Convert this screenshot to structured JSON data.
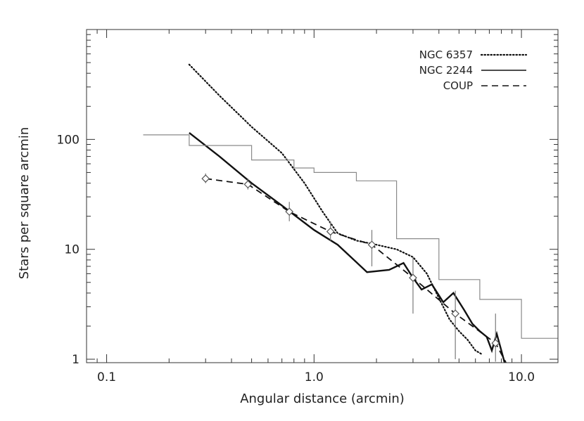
{
  "chart_data": {
    "type": "line",
    "title": "",
    "xlabel": "Angular distance (arcmin)",
    "ylabel": "Stars per square arcmin",
    "xscale": "log",
    "yscale": "log",
    "xlim": [
      0.08,
      15
    ],
    "ylim": [
      0.93,
      1000
    ],
    "xtick_labels": [
      {
        "value": 0.1,
        "label": "0.1"
      },
      {
        "value": 1,
        "label": "1.0"
      },
      {
        "value": 10,
        "label": "10.0"
      }
    ],
    "ytick_labels": [
      {
        "value": 1,
        "label": "1"
      },
      {
        "value": 10,
        "label": "10"
      },
      {
        "value": 100,
        "label": "100"
      }
    ],
    "grid": false,
    "legend_position": "top-right",
    "legend": [
      {
        "label": "NGC 6357",
        "style": "dotted"
      },
      {
        "label": "NGC 2244",
        "style": "solid"
      },
      {
        "label": "COUP",
        "style": "dashed"
      }
    ],
    "series": [
      {
        "name": "NGC 6357",
        "style": "dotted",
        "x": [
          0.25,
          0.35,
          0.5,
          0.7,
          0.9,
          1.1,
          1.3,
          1.6,
          2.0,
          2.5,
          3.0,
          3.5,
          4.0,
          4.5,
          5.0,
          5.5,
          6.0,
          6.5
        ],
        "y": [
          480,
          250,
          130,
          75,
          40,
          22,
          14,
          12,
          11,
          10,
          8.5,
          6,
          3.6,
          2.3,
          1.8,
          1.5,
          1.2,
          1.1
        ]
      },
      {
        "name": "NGC 2244",
        "style": "solid",
        "x": [
          0.25,
          0.35,
          0.5,
          0.7,
          1.0,
          1.3,
          1.8,
          2.3,
          2.7,
          3.0,
          3.3,
          3.7,
          4.2,
          4.7,
          5.3,
          5.8,
          6.3,
          6.8,
          7.2,
          7.6,
          8.0,
          8.4
        ],
        "y": [
          115,
          70,
          40,
          25,
          15,
          11,
          6.2,
          6.5,
          7.5,
          5.5,
          4.3,
          4.8,
          3.3,
          4.0,
          2.8,
          2.1,
          1.8,
          1.6,
          1.2,
          1.7,
          1.2,
          0.85
        ]
      },
      {
        "name": "COUP",
        "style": "dashed",
        "x": [
          0.3,
          0.48,
          0.76,
          1.2,
          1.9,
          3.0,
          4.8,
          7.5,
          8.5
        ],
        "y": [
          44,
          39,
          22,
          14.5,
          11,
          5.5,
          2.6,
          1.4,
          0.9
        ],
        "markers": {
          "shape": "diamond"
        },
        "error_bars": [
          {
            "x": 0.3,
            "low": 40,
            "high": 49
          },
          {
            "x": 0.48,
            "low": 35,
            "high": 44
          },
          {
            "x": 0.76,
            "low": 18,
            "high": 27
          },
          {
            "x": 1.2,
            "low": 12,
            "high": 18
          },
          {
            "x": 1.9,
            "low": 7,
            "high": 15
          },
          {
            "x": 3.0,
            "low": 2.6,
            "high": 8.5
          },
          {
            "x": 4.8,
            "low": 1.0,
            "high": 4.2
          },
          {
            "x": 7.5,
            "low": 0.95,
            "high": 2.6
          }
        ]
      },
      {
        "name": "",
        "style": "step",
        "edges": [
          0.15,
          0.25,
          0.5,
          0.8,
          1.0,
          1.6,
          2.5,
          4.0,
          6.3,
          10.0,
          15.0
        ],
        "y": [
          110,
          88,
          65,
          55,
          50,
          42,
          12.5,
          5.3,
          3.5,
          1.55
        ]
      }
    ]
  }
}
